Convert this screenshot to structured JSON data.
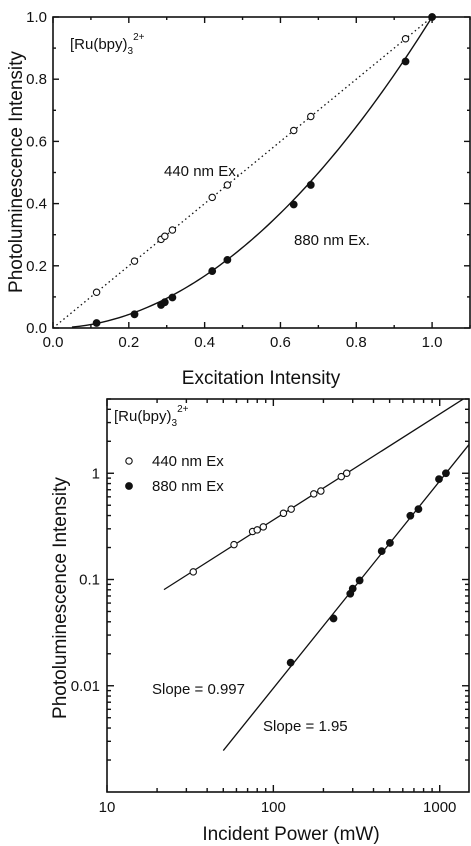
{
  "chart_data": [
    {
      "type": "scatter",
      "title": "",
      "xlabel": "Excitation Intensity",
      "ylabel": "Photoluminescence Intensity",
      "xlim": [
        0.0,
        1.1
      ],
      "ylim": [
        0.0,
        1.0
      ],
      "x_scale": "linear",
      "y_scale": "linear",
      "xticks": [
        "0.0",
        "0.2",
        "0.4",
        "0.6",
        "0.8",
        "1.0"
      ],
      "yticks": [
        "0.0",
        "0.2",
        "0.4",
        "0.6",
        "0.8",
        "1.0"
      ],
      "grid": false,
      "annotations": [
        {
          "text": "[Ru(bpy)",
          "sub": "3",
          "sup": "2+"
        },
        {
          "text": "440 nm Ex."
        },
        {
          "text": "880 nm Ex."
        }
      ],
      "series": [
        {
          "marker": "open-circle",
          "fit": "dotted-line",
          "x": [
            0.115,
            0.215,
            0.285,
            0.295,
            0.315,
            0.42,
            0.46,
            0.635,
            0.68,
            0.93,
            1.0
          ],
          "y": [
            0.115,
            0.215,
            0.285,
            0.295,
            0.315,
            0.42,
            0.46,
            0.635,
            0.68,
            0.93,
            1.0
          ]
        },
        {
          "marker": "filled-circle",
          "fit": "solid-curve",
          "x": [
            0.115,
            0.215,
            0.285,
            0.295,
            0.315,
            0.42,
            0.46,
            0.635,
            0.68,
            0.93,
            1.0
          ],
          "y": [
            0.016,
            0.044,
            0.074,
            0.083,
            0.098,
            0.183,
            0.219,
            0.397,
            0.46,
            0.857,
            1.0
          ]
        }
      ]
    },
    {
      "type": "scatter",
      "title": "",
      "xlabel": "Incident Power (mW)",
      "ylabel": "Photoluminescence Intensity",
      "x_scale": "log",
      "y_scale": "log",
      "xlim": [
        10,
        1500
      ],
      "ylim": [
        0.001,
        5
      ],
      "xticks": [
        "10",
        "100",
        "1000"
      ],
      "yticks": [
        "0.01",
        "0.1",
        "1"
      ],
      "grid": false,
      "legend": {
        "position": "top-left",
        "header": {
          "text": "[Ru(bpy)",
          "sub": "3",
          "sup": "2+"
        },
        "entries": [
          "440 nm Ex",
          "880 nm Ex"
        ]
      },
      "annotations": [
        "Slope = 0.997",
        "Slope = 1.95"
      ],
      "series": [
        {
          "name": "440 nm Ex",
          "marker": "open-circle",
          "slope": 0.997,
          "x": [
            33,
            58,
            75,
            80,
            87,
            115,
            128,
            175,
            193,
            256,
            276
          ],
          "y": [
            0.118,
            0.213,
            0.283,
            0.293,
            0.313,
            0.42,
            0.46,
            0.64,
            0.68,
            0.93,
            1.0
          ]
        },
        {
          "name": "880 nm Ex",
          "marker": "filled-circle",
          "slope": 1.95,
          "x": [
            127,
            230,
            290,
            300,
            330,
            448,
            502,
            666,
            745,
            990,
            1090
          ],
          "y": [
            0.0165,
            0.043,
            0.0735,
            0.082,
            0.098,
            0.185,
            0.221,
            0.398,
            0.46,
            0.88,
            1.0
          ]
        }
      ]
    }
  ]
}
